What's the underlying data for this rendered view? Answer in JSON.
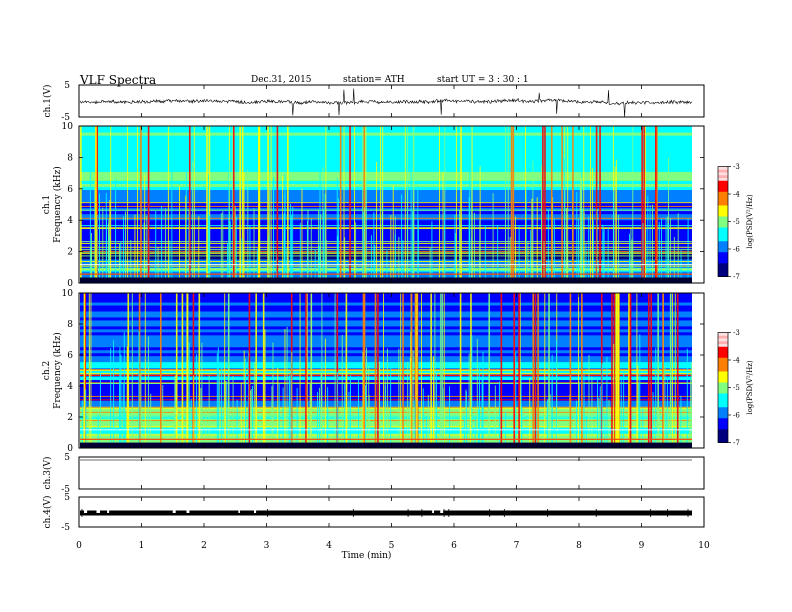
{
  "header": {
    "title": "VLF  Spectra",
    "date": "Dec.31, 2015",
    "station": "station= ATH",
    "start": "start  UT  =   3  : 30 : 1"
  },
  "colors": {
    "jet": [
      "#00007f",
      "#0000ff",
      "#0080ff",
      "#00ffff",
      "#80ff80",
      "#ffff00",
      "#ff8000",
      "#ff0000",
      "#ffffff"
    ]
  },
  "chart_data": [
    {
      "id": "ch1-waveform",
      "type": "line",
      "ylabel": "ch.1(V)",
      "ylim": [
        -5,
        5
      ],
      "yticks": [
        "5",
        "-5"
      ],
      "xlim": [
        0,
        10
      ],
      "description_values": "noisy signal near 0 V with occasional spikes",
      "baseline": 0
    },
    {
      "id": "ch1-spectrogram",
      "type": "heatmap",
      "ylabel": "ch.1\nFrequency (kHz)",
      "ylabel_channel": "ch.1",
      "ylabel_freq": "Frequency  (kHz)",
      "ylim": [
        0,
        10
      ],
      "yticks": [
        "0",
        "2",
        "4",
        "6",
        "8",
        "10"
      ],
      "xlim": [
        0,
        10
      ],
      "colorbar": {
        "label": "log(PSD(V²/Hz)",
        "ticks": [
          "-3",
          "-4",
          "-5",
          "-6",
          "-7"
        ],
        "range": [
          -7,
          -3
        ]
      }
    },
    {
      "id": "ch2-spectrogram",
      "type": "heatmap",
      "ylabel_channel": "ch.2",
      "ylabel_freq": "Frequency  (kHz)",
      "ylim": [
        0,
        10
      ],
      "yticks": [
        "0",
        "2",
        "4",
        "6",
        "8",
        "10"
      ],
      "xlim": [
        0,
        10
      ],
      "colorbar": {
        "label": "log(PSD(V²/Hz)",
        "ticks": [
          "-3",
          "-4",
          "-5",
          "-6",
          "-7"
        ],
        "range": [
          -7,
          -3
        ]
      }
    },
    {
      "id": "ch3-waveform",
      "type": "line",
      "ylabel": "ch.3(V)",
      "yticks": [
        "5",
        "-5"
      ],
      "ylim": [
        -5,
        5
      ],
      "baseline": 5
    },
    {
      "id": "ch4-waveform",
      "type": "line",
      "ylabel": "ch.4(V)",
      "yticks": [
        "5",
        "-5"
      ],
      "ylim": [
        -5,
        5
      ],
      "baseline": 0
    }
  ],
  "xaxis": {
    "label": "Time  (min)",
    "ticks": [
      "0",
      "1",
      "2",
      "3",
      "4",
      "5",
      "6",
      "7",
      "8",
      "9",
      "10"
    ]
  }
}
